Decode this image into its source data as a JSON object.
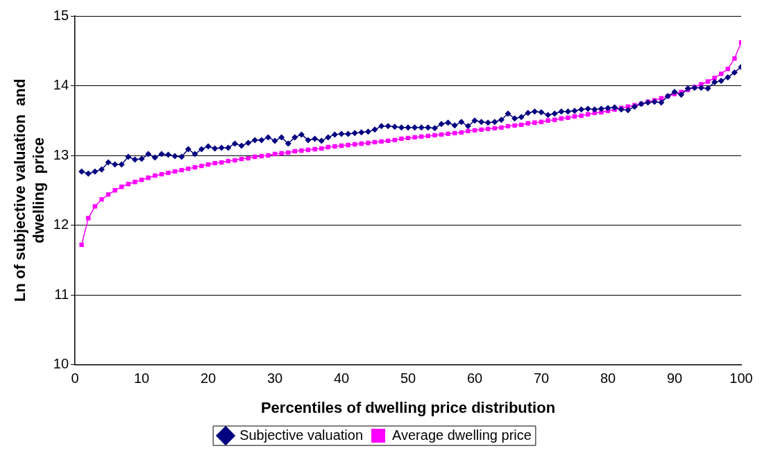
{
  "chart_data": {
    "type": "line",
    "xlabel": "Percentiles of dwelling price distribution",
    "ylabel": "Ln of subjective valuation  and\ndwelling  price",
    "x": [
      1,
      2,
      3,
      4,
      5,
      6,
      7,
      8,
      9,
      10,
      11,
      12,
      13,
      14,
      15,
      16,
      17,
      18,
      19,
      20,
      21,
      22,
      23,
      24,
      25,
      26,
      27,
      28,
      29,
      30,
      31,
      32,
      33,
      34,
      35,
      36,
      37,
      38,
      39,
      40,
      41,
      42,
      43,
      44,
      45,
      46,
      47,
      48,
      49,
      50,
      51,
      52,
      53,
      54,
      55,
      56,
      57,
      58,
      59,
      60,
      61,
      62,
      63,
      64,
      65,
      66,
      67,
      68,
      69,
      70,
      71,
      72,
      73,
      74,
      75,
      76,
      77,
      78,
      79,
      80,
      81,
      82,
      83,
      84,
      85,
      86,
      87,
      88,
      89,
      90,
      91,
      92,
      93,
      94,
      95,
      96,
      97,
      98,
      99,
      100
    ],
    "series": [
      {
        "name": "Subjective valuation",
        "color": "#000080",
        "marker": "diamond",
        "values": [
          12.77,
          12.74,
          12.77,
          12.8,
          12.9,
          12.87,
          12.87,
          12.98,
          12.94,
          12.95,
          13.02,
          12.97,
          13.02,
          13.01,
          12.99,
          12.98,
          13.09,
          13.02,
          13.09,
          13.13,
          13.1,
          13.11,
          13.11,
          13.17,
          13.14,
          13.18,
          13.22,
          13.22,
          13.26,
          13.21,
          13.26,
          13.17,
          13.26,
          13.3,
          13.22,
          13.24,
          13.21,
          13.26,
          13.3,
          13.31,
          13.31,
          13.32,
          13.33,
          13.34,
          13.37,
          13.42,
          13.42,
          13.41,
          13.4,
          13.4,
          13.4,
          13.4,
          13.4,
          13.39,
          13.45,
          13.47,
          13.43,
          13.48,
          13.42,
          13.5,
          13.48,
          13.47,
          13.48,
          13.51,
          13.6,
          13.53,
          13.55,
          13.61,
          13.63,
          13.62,
          13.58,
          13.6,
          13.63,
          13.63,
          13.64,
          13.66,
          13.67,
          13.66,
          13.67,
          13.68,
          13.69,
          13.66,
          13.65,
          13.7,
          13.74,
          13.76,
          13.77,
          13.76,
          13.85,
          13.91,
          13.87,
          13.96,
          13.97,
          13.97,
          13.96,
          14.05,
          14.07,
          14.12,
          14.19,
          14.27
        ]
      },
      {
        "name": "Average dwelling price",
        "color": "#ff00ff",
        "marker": "square",
        "values": [
          11.72,
          12.1,
          12.27,
          12.37,
          12.44,
          12.5,
          12.55,
          12.59,
          12.62,
          12.65,
          12.68,
          12.71,
          12.73,
          12.75,
          12.77,
          12.79,
          12.81,
          12.83,
          12.85,
          12.87,
          12.89,
          12.9,
          12.92,
          12.93,
          12.95,
          12.96,
          12.98,
          12.99,
          13.0,
          13.02,
          13.03,
          13.04,
          13.06,
          13.07,
          13.08,
          13.09,
          13.1,
          13.12,
          13.13,
          13.14,
          13.15,
          13.16,
          13.17,
          13.18,
          13.19,
          13.2,
          13.21,
          13.22,
          13.24,
          13.25,
          13.26,
          13.27,
          13.28,
          13.29,
          13.3,
          13.31,
          13.32,
          13.33,
          13.35,
          13.36,
          13.37,
          13.38,
          13.39,
          13.4,
          13.42,
          13.43,
          13.44,
          13.46,
          13.47,
          13.48,
          13.5,
          13.51,
          13.53,
          13.54,
          13.56,
          13.57,
          13.59,
          13.61,
          13.62,
          13.64,
          13.66,
          13.68,
          13.7,
          13.72,
          13.74,
          13.77,
          13.79,
          13.82,
          13.85,
          13.88,
          13.91,
          13.94,
          13.98,
          14.02,
          14.06,
          14.11,
          14.17,
          14.24,
          14.39,
          14.62
        ]
      }
    ],
    "xlim": [
      0,
      100
    ],
    "xticks": [
      0,
      10,
      20,
      30,
      40,
      50,
      60,
      70,
      80,
      90,
      100
    ],
    "ylim": [
      10,
      15
    ],
    "yticks": [
      10,
      11,
      12,
      13,
      14,
      15
    ],
    "grid": "y",
    "legend": "bottom",
    "line_style": "solid"
  }
}
